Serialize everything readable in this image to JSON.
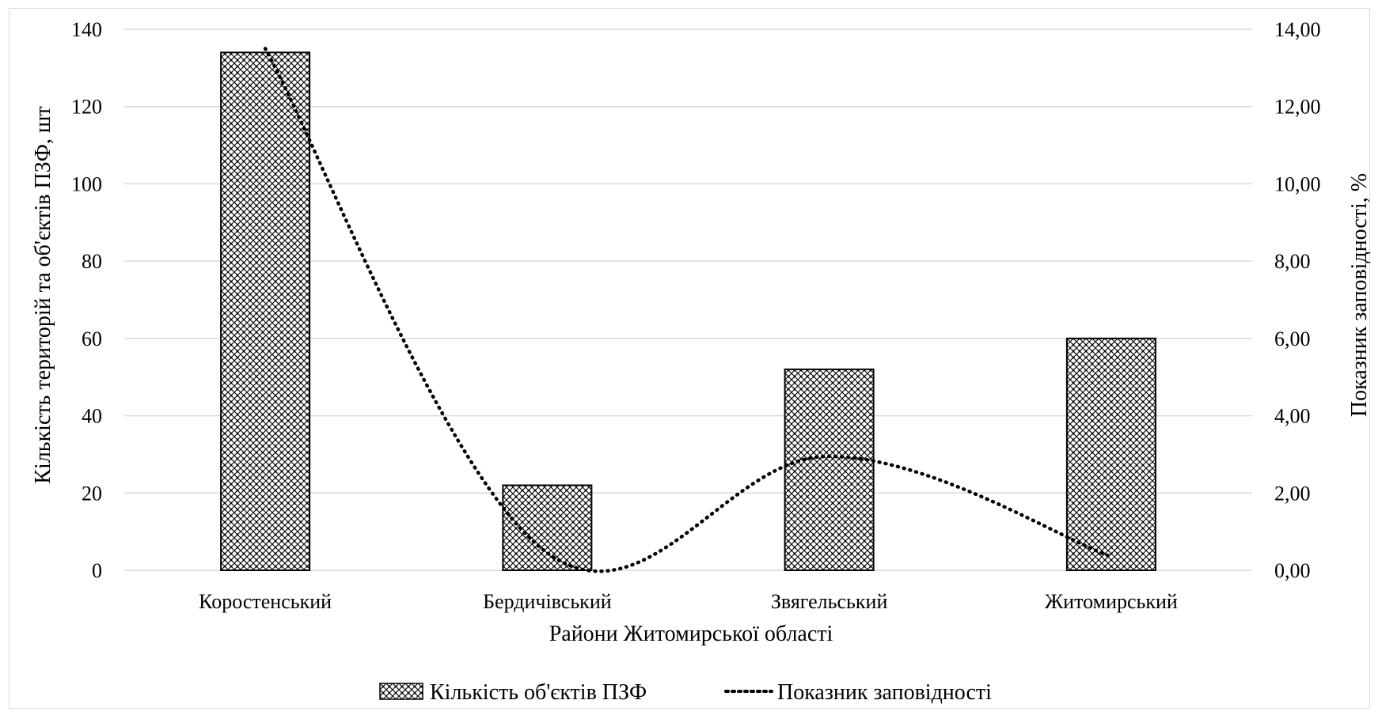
{
  "chart_data": {
    "type": "bar",
    "categories": [
      "Коростенський",
      "Бердичівський",
      "Звягельський",
      "Житомирський"
    ],
    "series": [
      {
        "name": "Кількість об'єктів ПЗФ",
        "kind": "bar",
        "axis": "left",
        "values": [
          134,
          22,
          52,
          60
        ]
      },
      {
        "name": "Показник заповідності",
        "kind": "line",
        "style": "dotted",
        "axis": "right",
        "values": [
          13.5,
          0.45,
          2.95,
          0.35
        ]
      }
    ],
    "xlabel": "Райони Житомирської області",
    "ylabel": "Кількість територій та об'єктів ПЗФ, шт",
    "y2label": "Показник заповідності, %",
    "ylim": [
      0,
      140
    ],
    "yticks": [
      "0",
      "20",
      "40",
      "60",
      "80",
      "100",
      "120",
      "140"
    ],
    "y2lim": [
      0,
      14
    ],
    "y2ticks": [
      "0,00",
      "2,00",
      "4,00",
      "6,00",
      "8,00",
      "10,00",
      "12,00",
      "14,00"
    ],
    "grid": true,
    "legend_position": "bottom",
    "bar_pattern": "crosshatch",
    "colors": {
      "bar_fill": "#c8c8c8",
      "bar_stroke": "#000000",
      "line": "#000000",
      "grid": "#d9d9d9"
    }
  }
}
